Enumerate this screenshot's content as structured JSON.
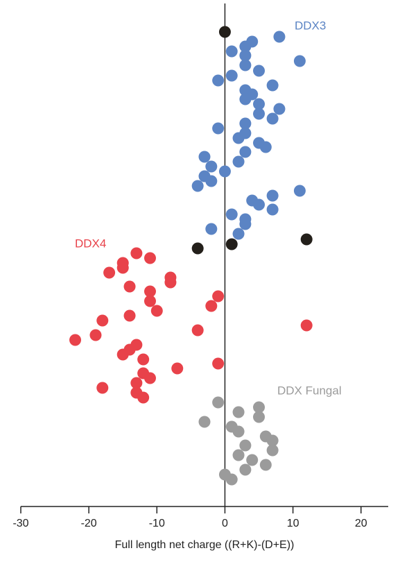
{
  "chart_data": {
    "type": "scatter",
    "x_label": "Full length net charge ((R+K)-(D+E))",
    "xlim": [
      -30,
      24
    ],
    "xticks": [
      -30,
      -20,
      -10,
      0,
      10,
      20
    ],
    "ylim": [
      72,
      0
    ],
    "series": [
      {
        "name": "DDX3",
        "color": "#5b84c4",
        "x": [
          8,
          4,
          1,
          3,
          3,
          3,
          11,
          5,
          1,
          -1,
          7,
          3,
          4,
          3,
          5,
          8,
          5,
          7,
          3,
          -1,
          3,
          2,
          5,
          6,
          3,
          -3,
          2,
          -2,
          0,
          -3,
          -2,
          -4,
          11,
          7,
          4,
          5,
          7,
          1,
          3,
          3,
          -2,
          2
        ],
        "values": [
          5.3,
          6.0,
          7.4,
          6.7,
          8.0,
          9.4,
          8.8,
          10.2,
          10.9,
          11.6,
          12.3,
          13.0,
          13.6,
          14.3,
          15.0,
          15.7,
          16.4,
          17.1,
          17.8,
          18.5,
          19.2,
          19.9,
          20.6,
          21.2,
          21.9,
          22.6,
          23.3,
          24.0,
          24.7,
          25.4,
          26.1,
          26.8,
          27.5,
          28.2,
          28.9,
          29.5,
          30.2,
          30.9,
          31.6,
          32.3,
          33.0,
          33.7
        ]
      },
      {
        "name": "DDX4",
        "color": "#e8424a",
        "x": [
          -13,
          -11,
          -15,
          -15,
          -17,
          -8,
          -8,
          -14,
          -11,
          -1,
          -11,
          -2,
          -10,
          -14,
          -18,
          12,
          -4,
          -19,
          -22,
          -13,
          -14,
          -15,
          -12,
          -1,
          -7,
          -12,
          -11,
          -13,
          -18,
          -13,
          -12
        ],
        "values": [
          36.5,
          37.2,
          37.9,
          38.6,
          39.3,
          40.0,
          40.7,
          41.3,
          42.0,
          42.7,
          43.4,
          44.1,
          44.8,
          45.5,
          46.2,
          46.9,
          47.6,
          48.3,
          49.0,
          49.7,
          50.4,
          51.1,
          51.8,
          52.4,
          53.1,
          53.8,
          54.5,
          55.2,
          55.9,
          56.6,
          57.3
        ]
      },
      {
        "name": "DDX Fungal",
        "color": "#9b9b9b",
        "x": [
          -1,
          5,
          2,
          5,
          -3,
          1,
          2,
          6,
          7,
          3,
          7,
          2,
          4,
          6,
          3,
          0,
          1
        ],
        "values": [
          58.0,
          58.7,
          59.4,
          60.1,
          60.8,
          61.5,
          62.2,
          62.9,
          63.5,
          64.2,
          64.9,
          65.6,
          66.3,
          67.0,
          67.7,
          68.4,
          69.1
        ]
      },
      {
        "color": "#231f1a",
        "x": [
          0,
          -4,
          1,
          12
        ],
        "values": [
          4.6,
          35.8,
          35.2,
          34.5
        ]
      }
    ]
  }
}
